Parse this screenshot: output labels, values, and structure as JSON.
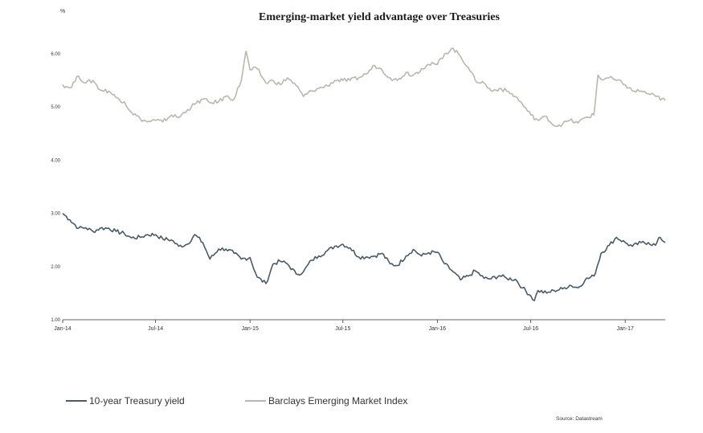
{
  "chart_data": {
    "type": "line",
    "title": "Emerging-market yield advantage over Treasuries",
    "unit_label": "%",
    "source": "Source: Datastream",
    "ylim": [
      1.0,
      6.2
    ],
    "y_ticks": [
      "1.00",
      "2.00",
      "3.00",
      "4.00",
      "5.00",
      "6.00"
    ],
    "y_tick_values": [
      1,
      2,
      3,
      4,
      5,
      6
    ],
    "x_range": [
      "2014-01-01",
      "2017-03-20"
    ],
    "x_tick_labels": [
      "Jan-14",
      "Jul-14",
      "Jan-15",
      "Jul-15",
      "Jan-16",
      "Jul-16",
      "Jan-17"
    ],
    "x_tick_dates": [
      "2014-01-01",
      "2014-07-01",
      "2015-01-01",
      "2015-07-01",
      "2016-01-01",
      "2016-07-01",
      "2017-01-01"
    ],
    "grid": false,
    "legend_position": "bottom",
    "series": [
      {
        "name": "10-year Treasury yield",
        "color": "#4a5a66",
        "points": [
          [
            "2014-01-01",
            3.0
          ],
          [
            "2014-01-15",
            2.88
          ],
          [
            "2014-02-01",
            2.72
          ],
          [
            "2014-02-15",
            2.73
          ],
          [
            "2014-03-01",
            2.66
          ],
          [
            "2014-03-15",
            2.72
          ],
          [
            "2014-04-01",
            2.72
          ],
          [
            "2014-04-15",
            2.66
          ],
          [
            "2014-05-01",
            2.62
          ],
          [
            "2014-05-15",
            2.54
          ],
          [
            "2014-06-01",
            2.55
          ],
          [
            "2014-06-15",
            2.6
          ],
          [
            "2014-07-01",
            2.6
          ],
          [
            "2014-07-15",
            2.52
          ],
          [
            "2014-08-01",
            2.5
          ],
          [
            "2014-08-15",
            2.38
          ],
          [
            "2014-09-01",
            2.42
          ],
          [
            "2014-09-15",
            2.6
          ],
          [
            "2014-10-01",
            2.45
          ],
          [
            "2014-10-15",
            2.14
          ],
          [
            "2014-11-01",
            2.33
          ],
          [
            "2014-11-15",
            2.33
          ],
          [
            "2014-12-01",
            2.25
          ],
          [
            "2014-12-15",
            2.14
          ],
          [
            "2015-01-01",
            2.17
          ],
          [
            "2015-01-15",
            1.8
          ],
          [
            "2015-02-01",
            1.68
          ],
          [
            "2015-02-15",
            2.05
          ],
          [
            "2015-03-01",
            2.1
          ],
          [
            "2015-03-15",
            2.05
          ],
          [
            "2015-04-01",
            1.86
          ],
          [
            "2015-04-15",
            1.9
          ],
          [
            "2015-05-01",
            2.12
          ],
          [
            "2015-05-15",
            2.2
          ],
          [
            "2015-06-01",
            2.3
          ],
          [
            "2015-06-15",
            2.38
          ],
          [
            "2015-07-01",
            2.42
          ],
          [
            "2015-07-15",
            2.35
          ],
          [
            "2015-08-01",
            2.18
          ],
          [
            "2015-08-15",
            2.18
          ],
          [
            "2015-09-01",
            2.2
          ],
          [
            "2015-09-15",
            2.25
          ],
          [
            "2015-10-01",
            2.05
          ],
          [
            "2015-10-15",
            2.02
          ],
          [
            "2015-11-01",
            2.2
          ],
          [
            "2015-11-15",
            2.32
          ],
          [
            "2015-12-01",
            2.2
          ],
          [
            "2015-12-15",
            2.26
          ],
          [
            "2016-01-01",
            2.27
          ],
          [
            "2016-01-15",
            2.05
          ],
          [
            "2016-02-01",
            1.9
          ],
          [
            "2016-02-15",
            1.75
          ],
          [
            "2016-03-01",
            1.82
          ],
          [
            "2016-03-15",
            1.92
          ],
          [
            "2016-04-01",
            1.78
          ],
          [
            "2016-04-15",
            1.77
          ],
          [
            "2016-05-01",
            1.83
          ],
          [
            "2016-05-15",
            1.78
          ],
          [
            "2016-06-01",
            1.76
          ],
          [
            "2016-06-15",
            1.6
          ],
          [
            "2016-07-01",
            1.45
          ],
          [
            "2016-07-08",
            1.36
          ],
          [
            "2016-07-15",
            1.55
          ],
          [
            "2016-08-01",
            1.5
          ],
          [
            "2016-08-15",
            1.55
          ],
          [
            "2016-09-01",
            1.58
          ],
          [
            "2016-09-15",
            1.65
          ],
          [
            "2016-10-01",
            1.6
          ],
          [
            "2016-10-15",
            1.75
          ],
          [
            "2016-11-01",
            1.82
          ],
          [
            "2016-11-09",
            2.05
          ],
          [
            "2016-11-15",
            2.25
          ],
          [
            "2016-12-01",
            2.4
          ],
          [
            "2016-12-15",
            2.55
          ],
          [
            "2017-01-01",
            2.45
          ],
          [
            "2017-01-15",
            2.38
          ],
          [
            "2017-02-01",
            2.45
          ],
          [
            "2017-02-15",
            2.45
          ],
          [
            "2017-03-01",
            2.4
          ],
          [
            "2017-03-10",
            2.55
          ],
          [
            "2017-03-20",
            2.45
          ]
        ]
      },
      {
        "name": "Barclays Emerging Market Index",
        "color": "#b9b7ae",
        "points": [
          [
            "2014-01-01",
            5.42
          ],
          [
            "2014-01-15",
            5.36
          ],
          [
            "2014-02-01",
            5.58
          ],
          [
            "2014-02-15",
            5.45
          ],
          [
            "2014-03-01",
            5.5
          ],
          [
            "2014-03-15",
            5.32
          ],
          [
            "2014-04-01",
            5.3
          ],
          [
            "2014-04-15",
            5.18
          ],
          [
            "2014-05-01",
            5.1
          ],
          [
            "2014-05-15",
            4.9
          ],
          [
            "2014-06-01",
            4.78
          ],
          [
            "2014-06-15",
            4.72
          ],
          [
            "2014-07-01",
            4.75
          ],
          [
            "2014-07-15",
            4.72
          ],
          [
            "2014-08-01",
            4.85
          ],
          [
            "2014-08-15",
            4.8
          ],
          [
            "2014-09-01",
            4.95
          ],
          [
            "2014-09-15",
            5.05
          ],
          [
            "2014-10-01",
            5.15
          ],
          [
            "2014-10-15",
            5.08
          ],
          [
            "2014-11-01",
            5.1
          ],
          [
            "2014-11-15",
            5.2
          ],
          [
            "2014-12-01",
            5.15
          ],
          [
            "2014-12-15",
            5.5
          ],
          [
            "2014-12-24",
            6.05
          ],
          [
            "2015-01-01",
            5.7
          ],
          [
            "2015-01-15",
            5.72
          ],
          [
            "2015-02-01",
            5.45
          ],
          [
            "2015-02-15",
            5.5
          ],
          [
            "2015-03-01",
            5.42
          ],
          [
            "2015-03-15",
            5.55
          ],
          [
            "2015-04-01",
            5.4
          ],
          [
            "2015-04-15",
            5.2
          ],
          [
            "2015-05-01",
            5.3
          ],
          [
            "2015-05-15",
            5.35
          ],
          [
            "2015-06-01",
            5.4
          ],
          [
            "2015-06-15",
            5.5
          ],
          [
            "2015-07-01",
            5.5
          ],
          [
            "2015-07-15",
            5.5
          ],
          [
            "2015-08-01",
            5.55
          ],
          [
            "2015-08-15",
            5.62
          ],
          [
            "2015-09-01",
            5.78
          ],
          [
            "2015-09-15",
            5.7
          ],
          [
            "2015-10-01",
            5.55
          ],
          [
            "2015-10-15",
            5.5
          ],
          [
            "2015-11-01",
            5.65
          ],
          [
            "2015-11-15",
            5.6
          ],
          [
            "2015-12-01",
            5.72
          ],
          [
            "2015-12-15",
            5.8
          ],
          [
            "2016-01-01",
            5.8
          ],
          [
            "2016-01-15",
            6.0
          ],
          [
            "2016-02-01",
            6.1
          ],
          [
            "2016-02-15",
            5.95
          ],
          [
            "2016-03-01",
            5.75
          ],
          [
            "2016-03-15",
            5.5
          ],
          [
            "2016-04-01",
            5.45
          ],
          [
            "2016-04-15",
            5.3
          ],
          [
            "2016-05-01",
            5.35
          ],
          [
            "2016-05-15",
            5.3
          ],
          [
            "2016-06-01",
            5.2
          ],
          [
            "2016-06-15",
            5.05
          ],
          [
            "2016-07-01",
            4.85
          ],
          [
            "2016-07-15",
            4.75
          ],
          [
            "2016-08-01",
            4.82
          ],
          [
            "2016-08-15",
            4.65
          ],
          [
            "2016-09-01",
            4.68
          ],
          [
            "2016-09-15",
            4.75
          ],
          [
            "2016-10-01",
            4.7
          ],
          [
            "2016-10-15",
            4.8
          ],
          [
            "2016-11-01",
            4.85
          ],
          [
            "2016-11-09",
            5.6
          ],
          [
            "2016-11-15",
            5.52
          ],
          [
            "2016-12-01",
            5.55
          ],
          [
            "2016-12-15",
            5.5
          ],
          [
            "2017-01-01",
            5.42
          ],
          [
            "2017-01-15",
            5.3
          ],
          [
            "2017-02-01",
            5.3
          ],
          [
            "2017-02-15",
            5.25
          ],
          [
            "2017-03-01",
            5.2
          ],
          [
            "2017-03-20",
            5.12
          ]
        ]
      }
    ]
  }
}
